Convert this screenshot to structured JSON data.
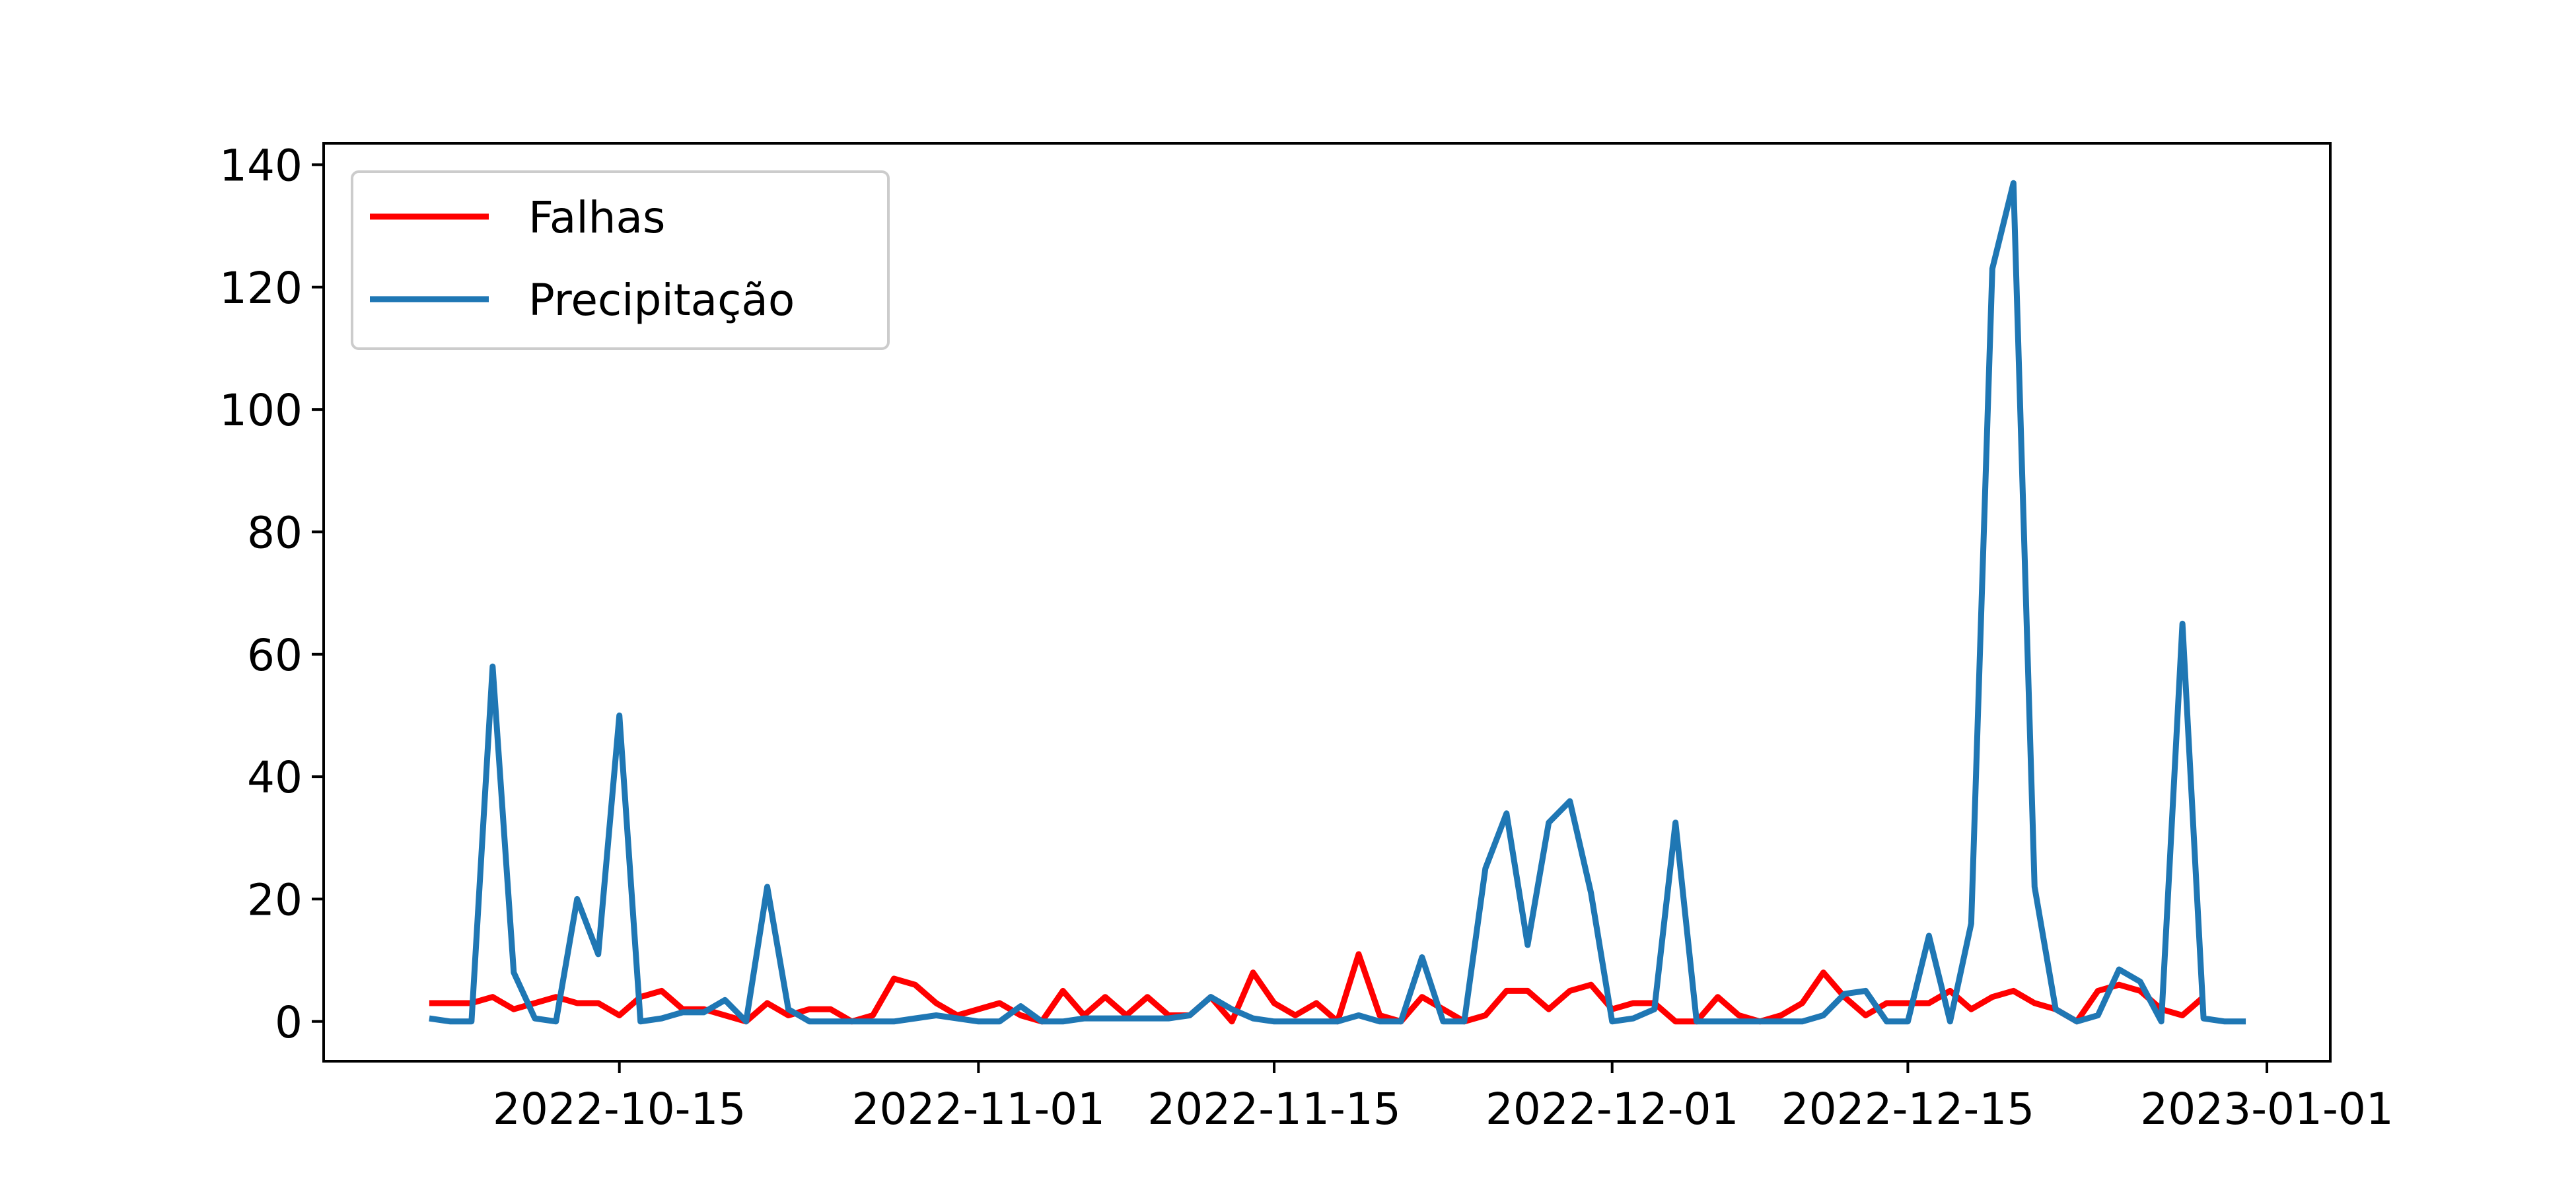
{
  "chart_data": {
    "type": "line",
    "title": "",
    "xlabel": "",
    "ylabel": "",
    "x_start": "2022-10-06",
    "ylim": [
      -6.5,
      143.5
    ],
    "xlim": [
      "2022-10-01",
      "2023-01-04"
    ],
    "grid": false,
    "legend_position": "upper-left",
    "yticks": [
      {
        "value": 0,
        "label": "0"
      },
      {
        "value": 20,
        "label": "20"
      },
      {
        "value": 40,
        "label": "40"
      },
      {
        "value": 60,
        "label": "60"
      },
      {
        "value": 80,
        "label": "80"
      },
      {
        "value": 100,
        "label": "100"
      },
      {
        "value": 120,
        "label": "120"
      },
      {
        "value": 140,
        "label": "140"
      }
    ],
    "xticks": [
      {
        "value": "2022-10-15",
        "label": "2022-10-15"
      },
      {
        "value": "2022-11-01",
        "label": "2022-11-01"
      },
      {
        "value": "2022-11-15",
        "label": "2022-11-15"
      },
      {
        "value": "2022-12-01",
        "label": "2022-12-01"
      },
      {
        "value": "2022-12-15",
        "label": "2022-12-15"
      },
      {
        "value": "2023-01-01",
        "label": "2023-01-01"
      }
    ],
    "series": [
      {
        "name": "Falhas",
        "color": "#ff0000",
        "values": [
          3,
          3,
          3,
          4,
          2,
          3,
          4,
          3,
          3,
          1,
          4,
          5,
          2,
          2,
          1,
          0,
          3,
          1,
          2,
          2,
          0,
          1,
          7,
          6,
          3,
          1,
          2,
          3,
          1,
          0,
          5,
          1,
          4,
          1,
          4,
          1,
          1,
          4,
          0,
          8,
          3,
          1,
          3,
          0,
          11,
          1,
          0,
          4,
          2,
          0,
          1,
          5,
          5,
          2,
          5,
          6,
          2,
          3,
          3,
          0,
          0,
          4,
          1,
          0,
          1,
          3,
          8,
          4,
          1,
          3,
          3,
          3,
          5,
          2,
          4,
          5,
          3,
          2,
          0,
          5,
          6,
          5,
          2,
          1,
          4
        ]
      },
      {
        "name": "Precipitação",
        "color": "#1f77b4",
        "values": [
          0.5,
          0,
          0,
          58,
          8,
          0.5,
          0,
          20,
          11,
          50,
          0,
          0.5,
          1.5,
          1.5,
          3.5,
          0,
          22,
          2,
          0,
          0,
          0,
          0,
          0,
          0.5,
          1,
          0.5,
          0,
          0,
          2.5,
          0,
          0,
          0.5,
          0.5,
          0.5,
          0.5,
          0.5,
          1,
          4,
          2,
          0.5,
          0,
          0,
          0,
          0,
          1,
          0,
          0,
          10.5,
          0,
          0,
          25,
          34,
          12.5,
          32.5,
          36,
          21,
          0,
          0.5,
          2,
          32.5,
          0,
          0,
          0,
          0,
          0,
          0,
          1,
          4.5,
          5,
          0,
          0,
          14,
          0,
          16,
          123,
          137,
          22,
          2,
          0,
          1,
          8.5,
          6.5,
          0,
          65,
          0.5,
          0,
          0
        ]
      }
    ]
  }
}
